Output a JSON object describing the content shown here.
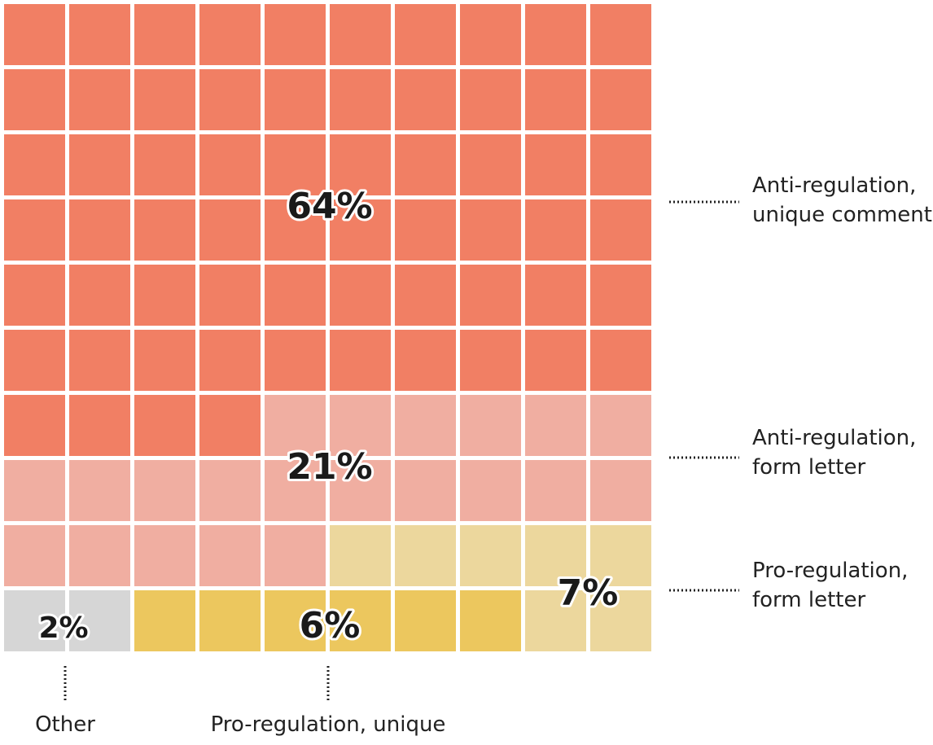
{
  "chart_data": {
    "type": "waffle",
    "grid": [
      10,
      10
    ],
    "total_cells": 100,
    "categories": [
      {
        "key": "anti_unique",
        "name": "Anti-regulation, unique comments",
        "label_lines": [
          "Anti-regulation,",
          "unique comments"
        ],
        "value": 64,
        "value_label": "64%",
        "color": "#f17f64"
      },
      {
        "key": "anti_form",
        "name": "Anti-regulation, form letter",
        "label_lines": [
          "Anti-regulation,",
          "form letter"
        ],
        "value": 21,
        "value_label": "21%",
        "color": "#f0aea1"
      },
      {
        "key": "pro_form",
        "name": "Pro-regulation, form letter",
        "label_lines": [
          "Pro-regulation,",
          "form letter"
        ],
        "value": 7,
        "value_label": "7%",
        "color": "#ecd79d"
      },
      {
        "key": "pro_unique",
        "name": "Pro-regulation, unique",
        "label_lines": [
          "Pro-regulation, unique"
        ],
        "value": 6,
        "value_label": "6%",
        "color": "#ecc75e"
      },
      {
        "key": "other",
        "name": "Other",
        "label_lines": [
          "Other"
        ],
        "value": 2,
        "value_label": "2%",
        "color": "#d6d6d6"
      }
    ]
  }
}
